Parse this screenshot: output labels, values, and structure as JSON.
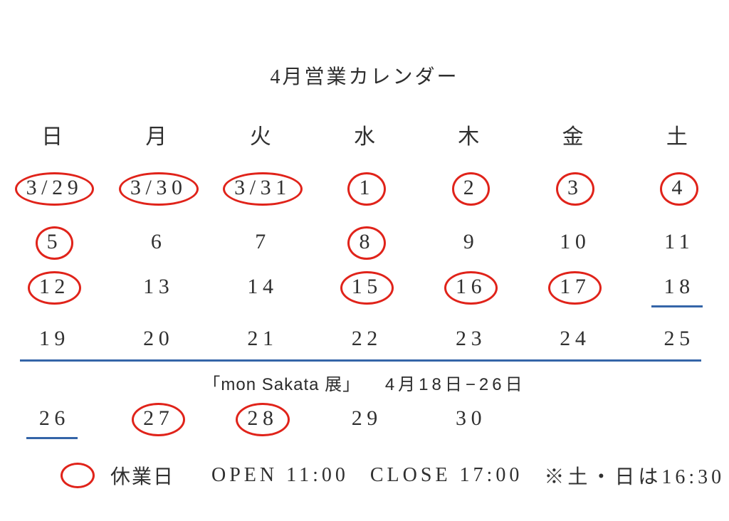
{
  "title": "4月営業カレンダー",
  "calendar": {
    "weekday_headers": [
      "日",
      "月",
      "火",
      "水",
      "木",
      "金",
      "土"
    ],
    "weeks": [
      {
        "days": [
          {
            "label": "3/29",
            "circled": true
          },
          {
            "label": "3/30",
            "circled": true
          },
          {
            "label": "3/31",
            "circled": true
          },
          {
            "label": "1",
            "circled": true
          },
          {
            "label": "2",
            "circled": true
          },
          {
            "label": "3",
            "circled": true
          },
          {
            "label": "4",
            "circled": true
          }
        ]
      },
      {
        "days": [
          {
            "label": "5",
            "circled": true
          },
          {
            "label": "6"
          },
          {
            "label": "7"
          },
          {
            "label": "8",
            "circled": true
          },
          {
            "label": "9"
          },
          {
            "label": "10"
          },
          {
            "label": "11"
          }
        ]
      },
      {
        "days": [
          {
            "label": "12",
            "circled": true
          },
          {
            "label": "13"
          },
          {
            "label": "14"
          },
          {
            "label": "15",
            "circled": true
          },
          {
            "label": "16",
            "circled": true
          },
          {
            "label": "17",
            "circled": true
          },
          {
            "label": "18",
            "underlined": true
          }
        ]
      },
      {
        "days": [
          {
            "label": "19"
          },
          {
            "label": "20"
          },
          {
            "label": "21"
          },
          {
            "label": "22"
          },
          {
            "label": "23"
          },
          {
            "label": "24"
          },
          {
            "label": "25"
          }
        ]
      },
      {
        "days": [
          {
            "label": "26",
            "underlined": true
          },
          {
            "label": "27",
            "circled": true
          },
          {
            "label": "28",
            "circled": true
          },
          {
            "label": "29"
          },
          {
            "label": "30"
          },
          {
            "label": ""
          },
          {
            "label": ""
          }
        ]
      }
    ]
  },
  "exhibition": {
    "name": "「mon Sakata 展」",
    "dates": "4月18日−26日"
  },
  "legend": {
    "closed_label": "休業日",
    "open_text": "OPEN 11:00",
    "close_text": "CLOSE 17:00",
    "note": "※土・日は16:30"
  },
  "colors": {
    "circle_red": "#e0231a",
    "line_blue": "#3465a8",
    "text": "#303030"
  }
}
